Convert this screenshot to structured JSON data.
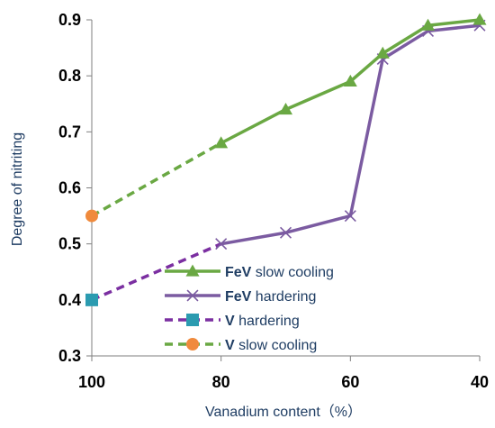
{
  "chart_data": {
    "type": "line",
    "xlabel": "Vanadium content（%）",
    "ylabel": "Degree of nitriting",
    "xlim": [
      100,
      40
    ],
    "ylim": [
      0.3,
      0.9
    ],
    "x_ticks": [
      "100",
      "80",
      "60",
      "40"
    ],
    "y_ticks": [
      "0.3",
      "0.4",
      "0.5",
      "0.6",
      "0.7",
      "0.8",
      "0.9"
    ],
    "grid": false,
    "legend_position": "lower-center",
    "series": [
      {
        "name": "FeV  slow cooling",
        "prefix": "FeV",
        "label": " slow cooling",
        "color": "#6aa843",
        "marker": "triangle",
        "dashed": false,
        "x": [
          80,
          70,
          60,
          55,
          48,
          40
        ],
        "y": [
          0.68,
          0.74,
          0.79,
          0.84,
          0.89,
          0.9
        ]
      },
      {
        "name": "FeV  hardering",
        "prefix": "FeV",
        "label": " hardering",
        "color": "#7b5ba1",
        "marker": "x",
        "dashed": false,
        "x": [
          80,
          70,
          60,
          55,
          48,
          40
        ],
        "y": [
          0.5,
          0.52,
          0.55,
          0.83,
          0.88,
          0.89
        ]
      },
      {
        "name": "V  hardering",
        "prefix": "V",
        "label": "  hardering",
        "color": "#7b2fa1",
        "marker": "square",
        "marker_color": "#2b9bb0",
        "dashed": true,
        "x": [
          100,
          80
        ],
        "y": [
          0.4,
          0.5
        ]
      },
      {
        "name": "V slow cooling",
        "prefix": "V",
        "label": " slow cooling",
        "color": "#6aa843",
        "marker": "circle",
        "marker_color": "#f08a3c",
        "dashed": true,
        "x": [
          100,
          80
        ],
        "y": [
          0.55,
          0.68
        ]
      }
    ]
  }
}
